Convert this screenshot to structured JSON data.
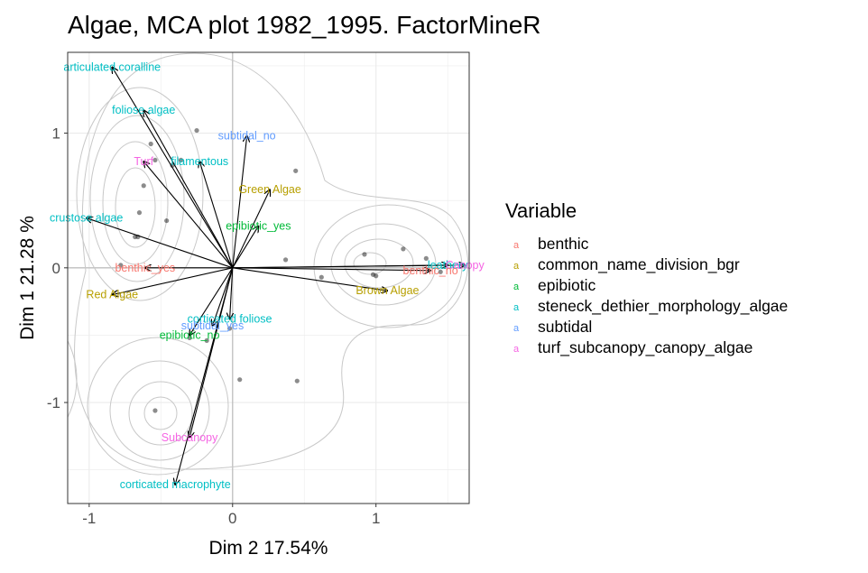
{
  "chart_data": {
    "type": "scatter",
    "title": "Algae, MCA plot 1982_1995. FactorMineR",
    "xlabel": "Dim 2  17.54%",
    "ylabel": "Dim 1 21.28 %",
    "xlim": [
      -1.15,
      1.65
    ],
    "ylim": [
      -1.75,
      1.6
    ],
    "x_ticks": [
      -1,
      0,
      1
    ],
    "x_tick_labels": [
      "-1",
      "0",
      "1"
    ],
    "y_ticks": [
      -1,
      0,
      1
    ],
    "y_tick_labels": [
      "-1",
      "0",
      "1"
    ],
    "grid": true,
    "legend_position": "right",
    "legend": {
      "title": "Variable",
      "key_glyph": "a",
      "items": [
        {
          "label": "benthic",
          "color": "#F8766D"
        },
        {
          "label": "common_name_division_bgr",
          "color": "#B79F00"
        },
        {
          "label": "epibiotic",
          "color": "#00BA38"
        },
        {
          "label": "steneck_dethier_morphology_algae",
          "color": "#00BFC4"
        },
        {
          "label": "subtidal",
          "color": "#619CFF"
        },
        {
          "label": "turf_subcanopy_canopy_algae",
          "color": "#F564E3"
        }
      ]
    },
    "variables": [
      {
        "label": "articulated coralline",
        "group": "steneck_dethier_morphology_algae",
        "x": -0.84,
        "y": 1.49
      },
      {
        "label": "foliose algae",
        "group": "steneck_dethier_morphology_algae",
        "x": -0.62,
        "y": 1.17
      },
      {
        "label": "subtidal_no",
        "group": "subtidal",
        "x": 0.1,
        "y": 0.98
      },
      {
        "label": "Turf",
        "group": "turf_subcanopy_canopy_algae",
        "x": -0.62,
        "y": 0.79
      },
      {
        "label": "filamentous",
        "group": "steneck_dethier_morphology_algae",
        "x": -0.23,
        "y": 0.79
      },
      {
        "label": "Green Algae",
        "group": "common_name_division_bgr",
        "x": 0.26,
        "y": 0.58
      },
      {
        "label": "crustose algae",
        "group": "steneck_dethier_morphology_algae",
        "x": -1.02,
        "y": 0.37
      },
      {
        "label": "epibiotic_yes",
        "group": "epibiotic",
        "x": 0.18,
        "y": 0.31
      },
      {
        "label": "benthic_yes",
        "group": "benthic",
        "x": -0.61,
        "y": 0.0
      },
      {
        "label": "leathery",
        "group": "steneck_dethier_morphology_algae",
        "x": 1.5,
        "y": 0.02
      },
      {
        "label": "Canopy",
        "group": "turf_subcanopy_canopy_algae",
        "x": 1.62,
        "y": 0.02
      },
      {
        "label": "benthic_no",
        "group": "benthic",
        "x": 1.38,
        "y": -0.02
      },
      {
        "label": "Red Algae",
        "group": "common_name_division_bgr",
        "x": -0.84,
        "y": -0.2
      },
      {
        "label": "Brown Algae",
        "group": "common_name_division_bgr",
        "x": 1.08,
        "y": -0.17
      },
      {
        "label": "corticated foliose",
        "group": "steneck_dethier_morphology_algae",
        "x": -0.02,
        "y": -0.38
      },
      {
        "label": "subtidal_yes",
        "group": "subtidal",
        "x": -0.14,
        "y": -0.43
      },
      {
        "label": "epibiotic_no",
        "group": "epibiotic",
        "x": -0.3,
        "y": -0.5
      },
      {
        "label": "Subcanopy",
        "group": "turf_subcanopy_canopy_algae",
        "x": -0.3,
        "y": -1.26
      },
      {
        "label": "corticated macrophyte",
        "group": "steneck_dethier_morphology_algae",
        "x": -0.4,
        "y": -1.61
      }
    ],
    "points": [
      {
        "x": -0.57,
        "y": 0.92
      },
      {
        "x": -0.25,
        "y": 1.02
      },
      {
        "x": -0.54,
        "y": 0.8
      },
      {
        "x": -0.36,
        "y": 0.8
      },
      {
        "x": -0.42,
        "y": 0.76
      },
      {
        "x": -0.62,
        "y": 0.61
      },
      {
        "x": 0.44,
        "y": 0.72
      },
      {
        "x": -0.65,
        "y": 0.41
      },
      {
        "x": -0.46,
        "y": 0.35
      },
      {
        "x": -0.68,
        "y": 0.23
      },
      {
        "x": -0.66,
        "y": 0.23
      },
      {
        "x": -0.78,
        "y": 0.02
      },
      {
        "x": 0.37,
        "y": 0.06
      },
      {
        "x": 0.92,
        "y": 0.1
      },
      {
        "x": 1.19,
        "y": 0.14
      },
      {
        "x": 1.35,
        "y": 0.07
      },
      {
        "x": 1.45,
        "y": -0.03
      },
      {
        "x": 0.62,
        "y": -0.07
      },
      {
        "x": 0.98,
        "y": -0.05
      },
      {
        "x": 1.0,
        "y": -0.06
      },
      {
        "x": -0.3,
        "y": -0.52
      },
      {
        "x": -0.18,
        "y": -0.54
      },
      {
        "x": 0.05,
        "y": -0.83
      },
      {
        "x": 0.45,
        "y": -0.84
      },
      {
        "x": -0.54,
        "y": -1.06
      },
      {
        "x": -0.02,
        "y": -0.45
      }
    ]
  }
}
